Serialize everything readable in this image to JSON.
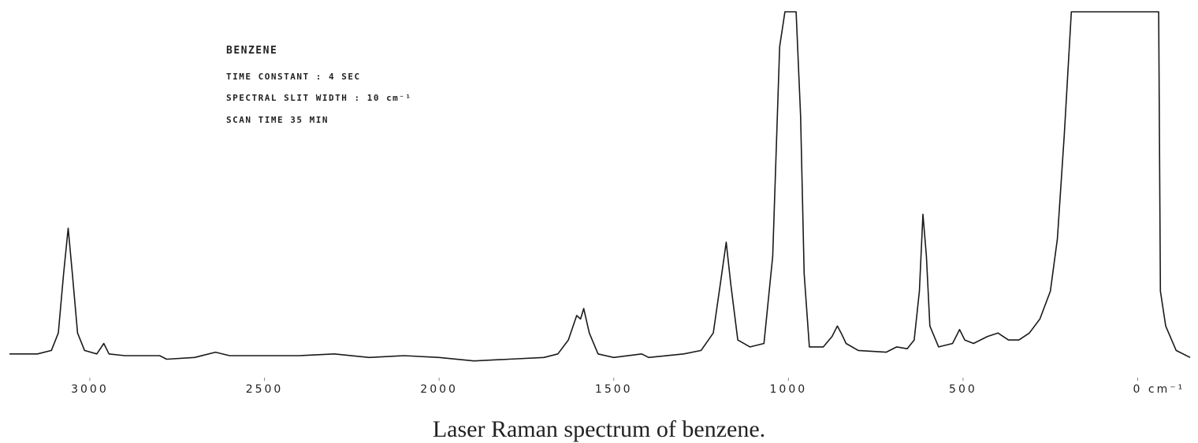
{
  "chart_data": {
    "type": "line",
    "annotations": [
      "BENZENE",
      "TIME CONSTANT : 4 SEC",
      "SPECTRAL SLIT WIDTH : 10 cm⁻¹",
      "SCAN TIME 35 MIN"
    ],
    "caption": "Laser Raman spectrum of benzene.",
    "x": [
      3230,
      3200,
      3150,
      3110,
      3090,
      3075,
      3062,
      3050,
      3035,
      3015,
      2980,
      2960,
      2945,
      2900,
      2800,
      2780,
      2700,
      2640,
      2600,
      2500,
      2400,
      2300,
      2200,
      2100,
      2000,
      1900,
      1800,
      1700,
      1660,
      1630,
      1606,
      1595,
      1586,
      1570,
      1545,
      1500,
      1420,
      1400,
      1300,
      1250,
      1215,
      1195,
      1178,
      1165,
      1145,
      1110,
      1070,
      1045,
      1025,
      1010,
      992,
      978,
      965,
      955,
      940,
      900,
      875,
      860,
      849,
      835,
      800,
      720,
      690,
      660,
      640,
      625,
      615,
      605,
      595,
      570,
      530,
      510,
      495,
      470,
      430,
      400,
      370,
      340,
      310,
      280,
      250,
      230,
      210,
      190,
      100,
      0,
      -60,
      -65,
      -80,
      -110,
      -150
    ],
    "series": [
      {
        "color": "#1a1a1a",
        "values": [
          2,
          2,
          2,
          3,
          8,
          25,
          38,
          25,
          8,
          3,
          2,
          5,
          2,
          1.5,
          1.5,
          0.5,
          1,
          2.5,
          1.5,
          1.5,
          1.5,
          2,
          1,
          1.5,
          1,
          0,
          0.5,
          1,
          2,
          6,
          13,
          12,
          15,
          8,
          2,
          1,
          2,
          1,
          2,
          3,
          8,
          22,
          34,
          22,
          6,
          4,
          5,
          30,
          90,
          100,
          100,
          100,
          70,
          25,
          4,
          4,
          7,
          10,
          8,
          5,
          3,
          2.5,
          4,
          3.5,
          6,
          20,
          42,
          30,
          10,
          4,
          5,
          9,
          6,
          5,
          7,
          8,
          6,
          6,
          8,
          12,
          20,
          35,
          65,
          100,
          100,
          100,
          100,
          20,
          10,
          3,
          1
        ]
      }
    ],
    "xlim": [
      3230,
      -150
    ],
    "ylim": [
      -3,
      100
    ],
    "xticks": [
      3000,
      2500,
      2000,
      1500,
      1000,
      500,
      {
        "value": 0,
        "label": "0 cm⁻¹"
      }
    ]
  }
}
